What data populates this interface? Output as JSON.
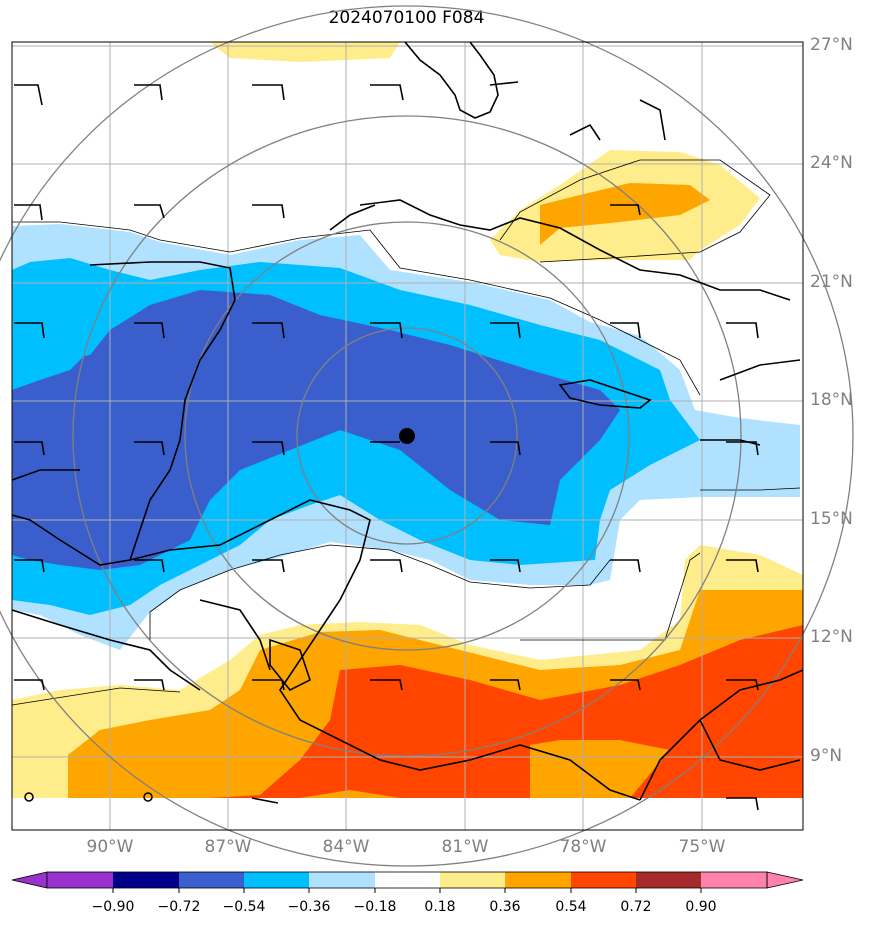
{
  "title": "2024070100 F084",
  "lat_labels": [
    "27°N",
    "24°N",
    "21°N",
    "18°N",
    "15°N",
    "12°N",
    "9°N"
  ],
  "lon_labels": [
    "90°W",
    "87°W",
    "84°W",
    "81°W",
    "78°W",
    "75°W"
  ],
  "colorbar": {
    "ticks": [
      "−0.90",
      "−0.72",
      "−0.54",
      "−0.36",
      "−0.18",
      "0.18",
      "0.36",
      "0.54",
      "0.72",
      "0.90"
    ],
    "colors": [
      "#9932cc",
      "#00008b",
      "#3a5fcd",
      "#00bfff",
      "#b0e2ff",
      "#ffffff",
      "#ffec8b",
      "#ffa500",
      "#ff4500",
      "#a52a2a",
      "#ff82ab"
    ]
  },
  "map": {
    "extent_lon": [
      -92.5,
      -72.5
    ],
    "extent_lat": [
      7.5,
      27.5
    ],
    "center_marker": {
      "lon": -82.5,
      "lat": 17.3
    },
    "colors": {
      "neg_dark": "#3a5fcd",
      "neg_mid": "#00bfff",
      "neg_light": "#b0e2ff",
      "pos_light": "#ffec8b",
      "pos_mid": "#ffa500",
      "pos_dark": "#ff4500",
      "grid": "#b0b0b0",
      "range_rings": "#808080"
    }
  }
}
